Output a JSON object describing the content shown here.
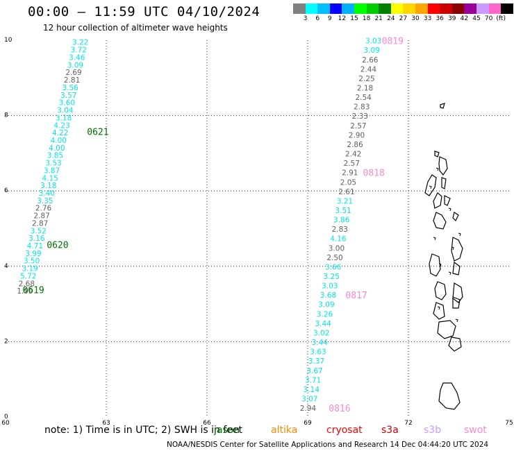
{
  "title": "00:00 – 11:59 UTC 04/10/2024",
  "subtitle": "12 hour collection of altimeter wave heights",
  "colorbar": {
    "colors": [
      "#808080",
      "#00ffff",
      "#00bfff",
      "#0000ff",
      "#00b0ff",
      "#00ff00",
      "#00cc00",
      "#008000",
      "#ffff00",
      "#ffd700",
      "#ffa500",
      "#ff0000",
      "#cc0000",
      "#8b0000",
      "#990099",
      "#cc99ff",
      "#ff66cc",
      "#000000"
    ],
    "labels": [
      "3",
      "6",
      "9",
      "12",
      "15",
      "18",
      "21",
      "24",
      "27",
      "30",
      "33",
      "36",
      "39",
      "42",
      "45",
      "70",
      "(ft)"
    ]
  },
  "axes": {
    "x_ticks": [
      "60",
      "63",
      "66",
      "69",
      "72",
      "75"
    ],
    "y_ticks": [
      "0",
      "2",
      "4",
      "6",
      "8",
      "10"
    ]
  },
  "colors": {
    "jason": "#00e5e5",
    "altika_like_grey": "#606060",
    "green_label": "#007000",
    "pink_label": "#ff88cc"
  },
  "tracks": [
    {
      "name": "0619-0621",
      "points": [
        {
          "lon": 62.47,
          "lat": 9.94,
          "v": "3.22",
          "c": "#00e5e5"
        },
        {
          "lon": 62.42,
          "lat": 9.73,
          "v": "3.72",
          "c": "#00e5e5"
        },
        {
          "lon": 62.37,
          "lat": 9.53,
          "v": "3.46",
          "c": "#00e5e5"
        },
        {
          "lon": 62.32,
          "lat": 9.33,
          "v": "3.09",
          "c": "#00e5e5"
        },
        {
          "lon": 62.27,
          "lat": 9.13,
          "v": "2.69",
          "c": "#606060"
        },
        {
          "lon": 62.22,
          "lat": 8.93,
          "v": "2.81",
          "c": "#606060"
        },
        {
          "lon": 62.17,
          "lat": 8.73,
          "v": "3.56",
          "c": "#00e5e5"
        },
        {
          "lon": 62.12,
          "lat": 8.53,
          "v": "3.57",
          "c": "#00e5e5"
        },
        {
          "lon": 62.07,
          "lat": 8.33,
          "v": "3.60",
          "c": "#00e5e5"
        },
        {
          "lon": 62.02,
          "lat": 8.13,
          "v": "3.04",
          "c": "#00e5e5"
        },
        {
          "lon": 61.97,
          "lat": 7.93,
          "v": "3.18",
          "c": "#00e5e5"
        },
        {
          "lon": 61.92,
          "lat": 7.73,
          "v": "4.23",
          "c": "#00e5e5"
        },
        {
          "lon": 61.87,
          "lat": 7.53,
          "v": "4.22",
          "c": "#00e5e5"
        },
        {
          "lon": 61.82,
          "lat": 7.33,
          "v": "4.00",
          "c": "#00e5e5"
        },
        {
          "lon": 61.77,
          "lat": 7.13,
          "v": "4.00",
          "c": "#00e5e5"
        },
        {
          "lon": 61.72,
          "lat": 6.93,
          "v": "3.85",
          "c": "#00e5e5"
        },
        {
          "lon": 61.67,
          "lat": 6.73,
          "v": "3.53",
          "c": "#00e5e5"
        },
        {
          "lon": 61.62,
          "lat": 6.53,
          "v": "3.87",
          "c": "#00e5e5"
        },
        {
          "lon": 61.57,
          "lat": 6.33,
          "v": "4.15",
          "c": "#00e5e5"
        },
        {
          "lon": 61.52,
          "lat": 6.13,
          "v": "3.18",
          "c": "#00e5e5"
        },
        {
          "lon": 61.47,
          "lat": 5.93,
          "v": "3.40",
          "c": "#00e5e5"
        },
        {
          "lon": 61.42,
          "lat": 5.73,
          "v": "3.35",
          "c": "#00e5e5"
        },
        {
          "lon": 61.37,
          "lat": 5.53,
          "v": "2.76",
          "c": "#606060"
        },
        {
          "lon": 61.32,
          "lat": 5.33,
          "v": "2.87",
          "c": "#606060"
        },
        {
          "lon": 61.27,
          "lat": 5.13,
          "v": "2.87",
          "c": "#606060"
        },
        {
          "lon": 61.22,
          "lat": 4.93,
          "v": "3.52",
          "c": "#00e5e5"
        },
        {
          "lon": 61.17,
          "lat": 4.73,
          "v": "3.16",
          "c": "#00e5e5"
        },
        {
          "lon": 61.12,
          "lat": 4.53,
          "v": "4.71",
          "c": "#00e5e5"
        },
        {
          "lon": 61.07,
          "lat": 4.33,
          "v": "3.99",
          "c": "#00e5e5"
        },
        {
          "lon": 61.02,
          "lat": 4.13,
          "v": "3.50",
          "c": "#00e5e5"
        },
        {
          "lon": 60.97,
          "lat": 3.93,
          "v": "3.19",
          "c": "#00e5e5"
        },
        {
          "lon": 60.92,
          "lat": 3.73,
          "v": "5.72",
          "c": "#00e5e5"
        },
        {
          "lon": 60.87,
          "lat": 3.53,
          "v": "2.68",
          "c": "#606060"
        },
        {
          "lon": 60.82,
          "lat": 3.33,
          "v": "1.99",
          "c": "#606060"
        }
      ],
      "time_labels": [
        {
          "lon": 62.75,
          "lat": 7.56,
          "t": "0621",
          "c": "#007000"
        },
        {
          "lon": 61.55,
          "lat": 4.56,
          "t": "0620",
          "c": "#007000"
        },
        {
          "lon": 60.83,
          "lat": 3.36,
          "t": "0619",
          "c": "#007000"
        }
      ]
    },
    {
      "name": "0816-0819",
      "points": [
        {
          "lon": 71.2,
          "lat": 9.97,
          "v": "3.03",
          "c": "#00e5e5"
        },
        {
          "lon": 71.15,
          "lat": 9.72,
          "v": "3.09",
          "c": "#00e5e5"
        },
        {
          "lon": 71.1,
          "lat": 9.47,
          "v": "2.66",
          "c": "#606060"
        },
        {
          "lon": 71.05,
          "lat": 9.22,
          "v": "2.44",
          "c": "#606060"
        },
        {
          "lon": 71.0,
          "lat": 8.97,
          "v": "2.25",
          "c": "#606060"
        },
        {
          "lon": 70.95,
          "lat": 8.72,
          "v": "2.18",
          "c": "#606060"
        },
        {
          "lon": 70.9,
          "lat": 8.47,
          "v": "2.54",
          "c": "#606060"
        },
        {
          "lon": 70.85,
          "lat": 8.22,
          "v": "2.83",
          "c": "#606060"
        },
        {
          "lon": 70.8,
          "lat": 7.97,
          "v": "2.33",
          "c": "#606060"
        },
        {
          "lon": 70.75,
          "lat": 7.72,
          "v": "2.57",
          "c": "#606060"
        },
        {
          "lon": 70.7,
          "lat": 7.47,
          "v": "2.90",
          "c": "#606060"
        },
        {
          "lon": 70.65,
          "lat": 7.22,
          "v": "2.86",
          "c": "#606060"
        },
        {
          "lon": 70.6,
          "lat": 6.97,
          "v": "2.42",
          "c": "#606060"
        },
        {
          "lon": 70.55,
          "lat": 6.72,
          "v": "2.57",
          "c": "#606060"
        },
        {
          "lon": 70.5,
          "lat": 6.47,
          "v": "2.91",
          "c": "#606060"
        },
        {
          "lon": 70.45,
          "lat": 6.22,
          "v": "2.05",
          "c": "#606060"
        },
        {
          "lon": 70.4,
          "lat": 5.97,
          "v": "2.61",
          "c": "#606060"
        },
        {
          "lon": 70.35,
          "lat": 5.72,
          "v": "3.21",
          "c": "#00e5e5"
        },
        {
          "lon": 70.3,
          "lat": 5.47,
          "v": "3.51",
          "c": "#00e5e5"
        },
        {
          "lon": 70.25,
          "lat": 5.22,
          "v": "3.86",
          "c": "#00e5e5"
        },
        {
          "lon": 70.2,
          "lat": 4.97,
          "v": "2.83",
          "c": "#606060"
        },
        {
          "lon": 70.15,
          "lat": 4.72,
          "v": "4.16",
          "c": "#00e5e5"
        },
        {
          "lon": 70.1,
          "lat": 4.47,
          "v": "3.00",
          "c": "#606060"
        },
        {
          "lon": 70.05,
          "lat": 4.22,
          "v": "2.50",
          "c": "#606060"
        },
        {
          "lon": 70.0,
          "lat": 3.97,
          "v": "3.66",
          "c": "#00e5e5"
        },
        {
          "lon": 69.95,
          "lat": 3.72,
          "v": "3.25",
          "c": "#00e5e5"
        },
        {
          "lon": 69.9,
          "lat": 3.47,
          "v": "3.03",
          "c": "#00e5e5"
        },
        {
          "lon": 69.85,
          "lat": 3.22,
          "v": "3.68",
          "c": "#00e5e5"
        },
        {
          "lon": 69.8,
          "lat": 2.97,
          "v": "3.09",
          "c": "#00e5e5"
        },
        {
          "lon": 69.75,
          "lat": 2.72,
          "v": "3.26",
          "c": "#00e5e5"
        },
        {
          "lon": 69.7,
          "lat": 2.47,
          "v": "3.44",
          "c": "#00e5e5"
        },
        {
          "lon": 69.65,
          "lat": 2.22,
          "v": "3.02",
          "c": "#00e5e5"
        },
        {
          "lon": 69.6,
          "lat": 1.97,
          "v": "3.44",
          "c": "#00e5e5"
        },
        {
          "lon": 69.55,
          "lat": 1.72,
          "v": "3.63",
          "c": "#00e5e5"
        },
        {
          "lon": 69.5,
          "lat": 1.47,
          "v": "3.37",
          "c": "#00e5e5"
        },
        {
          "lon": 69.45,
          "lat": 1.22,
          "v": "3.67",
          "c": "#00e5e5"
        },
        {
          "lon": 69.4,
          "lat": 0.97,
          "v": "3.71",
          "c": "#00e5e5"
        },
        {
          "lon": 69.35,
          "lat": 0.72,
          "v": "3.14",
          "c": "#00e5e5"
        },
        {
          "lon": 69.3,
          "lat": 0.47,
          "v": "3.07",
          "c": "#00e5e5"
        },
        {
          "lon": 69.25,
          "lat": 0.22,
          "v": "2.94",
          "c": "#606060"
        }
      ],
      "time_labels": [
        {
          "lon": 71.53,
          "lat": 9.97,
          "t": "0819",
          "c": "#ff88cc"
        },
        {
          "lon": 70.97,
          "lat": 6.47,
          "t": "0818",
          "c": "#ff88cc"
        },
        {
          "lon": 70.45,
          "lat": 3.22,
          "t": "0817",
          "c": "#ff88cc"
        },
        {
          "lon": 69.95,
          "lat": 0.22,
          "t": "0816",
          "c": "#ff88cc"
        }
      ]
    }
  ],
  "footer": {
    "note": "note:  1) Time is in UTC;  2) SWH is in feet",
    "legend": [
      {
        "name": "jason",
        "color": "#007000"
      },
      {
        "name": "altika",
        "color": "#ff8800"
      },
      {
        "name": "cryosat",
        "color": "#ff0000"
      },
      {
        "name": "s3a",
        "color": "#cc0000"
      },
      {
        "name": "s3b",
        "color": "#cc99ff"
      },
      {
        "name": "swot",
        "color": "#ff88cc"
      }
    ],
    "credit": "NOAA/NESDIS Center for Satellite Applications and Research    14 Dec 04:44:20 UTC 2024"
  }
}
